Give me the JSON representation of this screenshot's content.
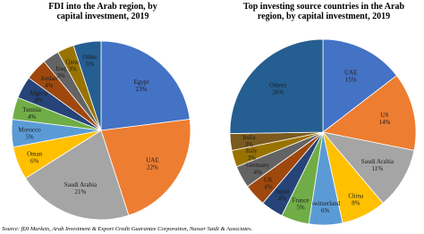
{
  "chart_data": [
    {
      "type": "pie",
      "title": "FDI into the Arab region, by capital investment, 2019",
      "categories": [
        "Egypt",
        "UAE",
        "Saudi Arabia",
        "Oman",
        "Morocco",
        "Tunisia",
        "Algeria",
        "Jordan",
        "Iraq",
        "Qatar",
        "Other"
      ],
      "values": [
        23,
        22,
        21,
        6,
        5,
        4,
        4,
        4,
        3,
        3,
        5
      ],
      "value_labels": [
        "23%",
        "22%",
        "21%",
        "6%",
        "5%",
        "4%",
        "4%",
        "4%",
        "3%",
        "3%",
        "5%"
      ],
      "colors": [
        "#4472c4",
        "#ed7d31",
        "#a5a5a5",
        "#ffc000",
        "#5b9bd5",
        "#70ad47",
        "#264478",
        "#9e480e",
        "#636363",
        "#997300",
        "#255e91"
      ]
    },
    {
      "type": "pie",
      "title": "Top investing source countries in the Arab region, by capital investment, 2019",
      "categories": [
        "UAE",
        "US",
        "Saudi Arabia",
        "China",
        "Switzerland",
        "France",
        "Japan",
        "UK",
        "Germany",
        "Italy",
        "India",
        "Others"
      ],
      "values": [
        15,
        14,
        11,
        8,
        6,
        5,
        4,
        4,
        4,
        3,
        3,
        26
      ],
      "value_labels": [
        "15%",
        "14%",
        "11%",
        "8%",
        "6%",
        "5%",
        "4%",
        "4%",
        "4%",
        "3%",
        "3%",
        "26%"
      ],
      "colors": [
        "#4472c4",
        "#ed7d31",
        "#a5a5a5",
        "#ffc000",
        "#5b9bd5",
        "#70ad47",
        "#264478",
        "#9e480e",
        "#636363",
        "#997300",
        "#7b5a1e",
        "#255e91"
      ]
    }
  ],
  "source": "Source: fDI Markets, Arab Investment & Export Credit Guarantee Corporation, Nasser Saidi & Associates."
}
